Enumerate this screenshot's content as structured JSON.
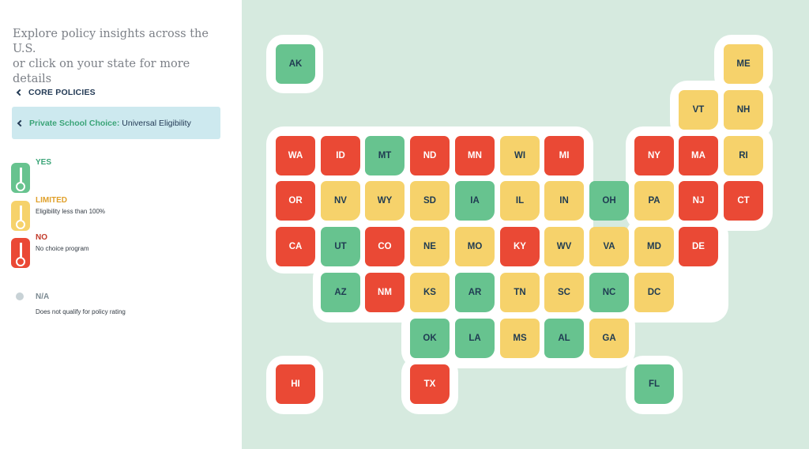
{
  "sidebar": {
    "intro_line1": "Explore policy insights across the U.S.",
    "intro_line2": "or click on your state for more details",
    "breadcrumb": "CORE POLICIES",
    "policy_category": "Private School Choice:",
    "policy_name": "Universal Eligibility"
  },
  "legend": [
    {
      "key": "YES",
      "label": "YES",
      "desc": "",
      "color": "#67c38f",
      "label_color": "#3aa477"
    },
    {
      "key": "LIMITED",
      "label": "LIMITED",
      "desc": "Eligibility less than 100%",
      "color": "#f6d26b",
      "label_color": "#e0a02a"
    },
    {
      "key": "NO",
      "label": "NO",
      "desc": "No choice program",
      "color": "#ea4935",
      "label_color": "#c23a2a"
    },
    {
      "key": "NA",
      "label": "N/A",
      "desc": "Does not qualify for policy rating",
      "color": "#c8d2d6",
      "label_color": "#7c8a92"
    }
  ],
  "states": [
    {
      "abbr": "AK",
      "row": 0,
      "col": 0,
      "status": "YES"
    },
    {
      "abbr": "ME",
      "row": 0,
      "col": 10,
      "status": "LIMITED"
    },
    {
      "abbr": "VT",
      "row": 1,
      "col": 9,
      "status": "LIMITED"
    },
    {
      "abbr": "NH",
      "row": 1,
      "col": 10,
      "status": "LIMITED"
    },
    {
      "abbr": "WA",
      "row": 2,
      "col": 0,
      "status": "NO"
    },
    {
      "abbr": "ID",
      "row": 2,
      "col": 1,
      "status": "NO"
    },
    {
      "abbr": "MT",
      "row": 2,
      "col": 2,
      "status": "YES"
    },
    {
      "abbr": "ND",
      "row": 2,
      "col": 3,
      "status": "NO"
    },
    {
      "abbr": "MN",
      "row": 2,
      "col": 4,
      "status": "NO"
    },
    {
      "abbr": "WI",
      "row": 2,
      "col": 5,
      "status": "LIMITED"
    },
    {
      "abbr": "MI",
      "row": 2,
      "col": 6,
      "status": "NO"
    },
    {
      "abbr": "NY",
      "row": 2,
      "col": 8,
      "status": "NO"
    },
    {
      "abbr": "MA",
      "row": 2,
      "col": 9,
      "status": "NO"
    },
    {
      "abbr": "RI",
      "row": 2,
      "col": 10,
      "status": "LIMITED"
    },
    {
      "abbr": "OR",
      "row": 3,
      "col": 0,
      "status": "NO"
    },
    {
      "abbr": "NV",
      "row": 3,
      "col": 1,
      "status": "LIMITED"
    },
    {
      "abbr": "WY",
      "row": 3,
      "col": 2,
      "status": "LIMITED"
    },
    {
      "abbr": "SD",
      "row": 3,
      "col": 3,
      "status": "LIMITED"
    },
    {
      "abbr": "IA",
      "row": 3,
      "col": 4,
      "status": "YES"
    },
    {
      "abbr": "IL",
      "row": 3,
      "col": 5,
      "status": "LIMITED"
    },
    {
      "abbr": "IN",
      "row": 3,
      "col": 6,
      "status": "LIMITED"
    },
    {
      "abbr": "OH",
      "row": 3,
      "col": 7,
      "status": "YES"
    },
    {
      "abbr": "PA",
      "row": 3,
      "col": 8,
      "status": "LIMITED"
    },
    {
      "abbr": "NJ",
      "row": 3,
      "col": 9,
      "status": "NO"
    },
    {
      "abbr": "CT",
      "row": 3,
      "col": 10,
      "status": "NO"
    },
    {
      "abbr": "CA",
      "row": 4,
      "col": 0,
      "status": "NO"
    },
    {
      "abbr": "UT",
      "row": 4,
      "col": 1,
      "status": "YES"
    },
    {
      "abbr": "CO",
      "row": 4,
      "col": 2,
      "status": "NO"
    },
    {
      "abbr": "NE",
      "row": 4,
      "col": 3,
      "status": "LIMITED"
    },
    {
      "abbr": "MO",
      "row": 4,
      "col": 4,
      "status": "LIMITED"
    },
    {
      "abbr": "KY",
      "row": 4,
      "col": 5,
      "status": "NO"
    },
    {
      "abbr": "WV",
      "row": 4,
      "col": 6,
      "status": "LIMITED"
    },
    {
      "abbr": "VA",
      "row": 4,
      "col": 7,
      "status": "LIMITED"
    },
    {
      "abbr": "MD",
      "row": 4,
      "col": 8,
      "status": "LIMITED"
    },
    {
      "abbr": "DE",
      "row": 4,
      "col": 9,
      "status": "NO"
    },
    {
      "abbr": "AZ",
      "row": 5,
      "col": 1,
      "status": "YES"
    },
    {
      "abbr": "NM",
      "row": 5,
      "col": 2,
      "status": "NO"
    },
    {
      "abbr": "KS",
      "row": 5,
      "col": 3,
      "status": "LIMITED"
    },
    {
      "abbr": "AR",
      "row": 5,
      "col": 4,
      "status": "YES"
    },
    {
      "abbr": "TN",
      "row": 5,
      "col": 5,
      "status": "LIMITED"
    },
    {
      "abbr": "SC",
      "row": 5,
      "col": 6,
      "status": "LIMITED"
    },
    {
      "abbr": "NC",
      "row": 5,
      "col": 7,
      "status": "YES"
    },
    {
      "abbr": "DC",
      "row": 5,
      "col": 8,
      "status": "LIMITED"
    },
    {
      "abbr": "OK",
      "row": 6,
      "col": 3,
      "status": "YES"
    },
    {
      "abbr": "LA",
      "row": 6,
      "col": 4,
      "status": "YES"
    },
    {
      "abbr": "MS",
      "row": 6,
      "col": 5,
      "status": "LIMITED"
    },
    {
      "abbr": "AL",
      "row": 6,
      "col": 6,
      "status": "YES"
    },
    {
      "abbr": "GA",
      "row": 6,
      "col": 7,
      "status": "LIMITED"
    },
    {
      "abbr": "HI",
      "row": 7,
      "col": 0,
      "status": "NO"
    },
    {
      "abbr": "TX",
      "row": 7,
      "col": 3,
      "status": "NO"
    },
    {
      "abbr": "FL",
      "row": 7,
      "col": 8,
      "status": "YES"
    }
  ]
}
